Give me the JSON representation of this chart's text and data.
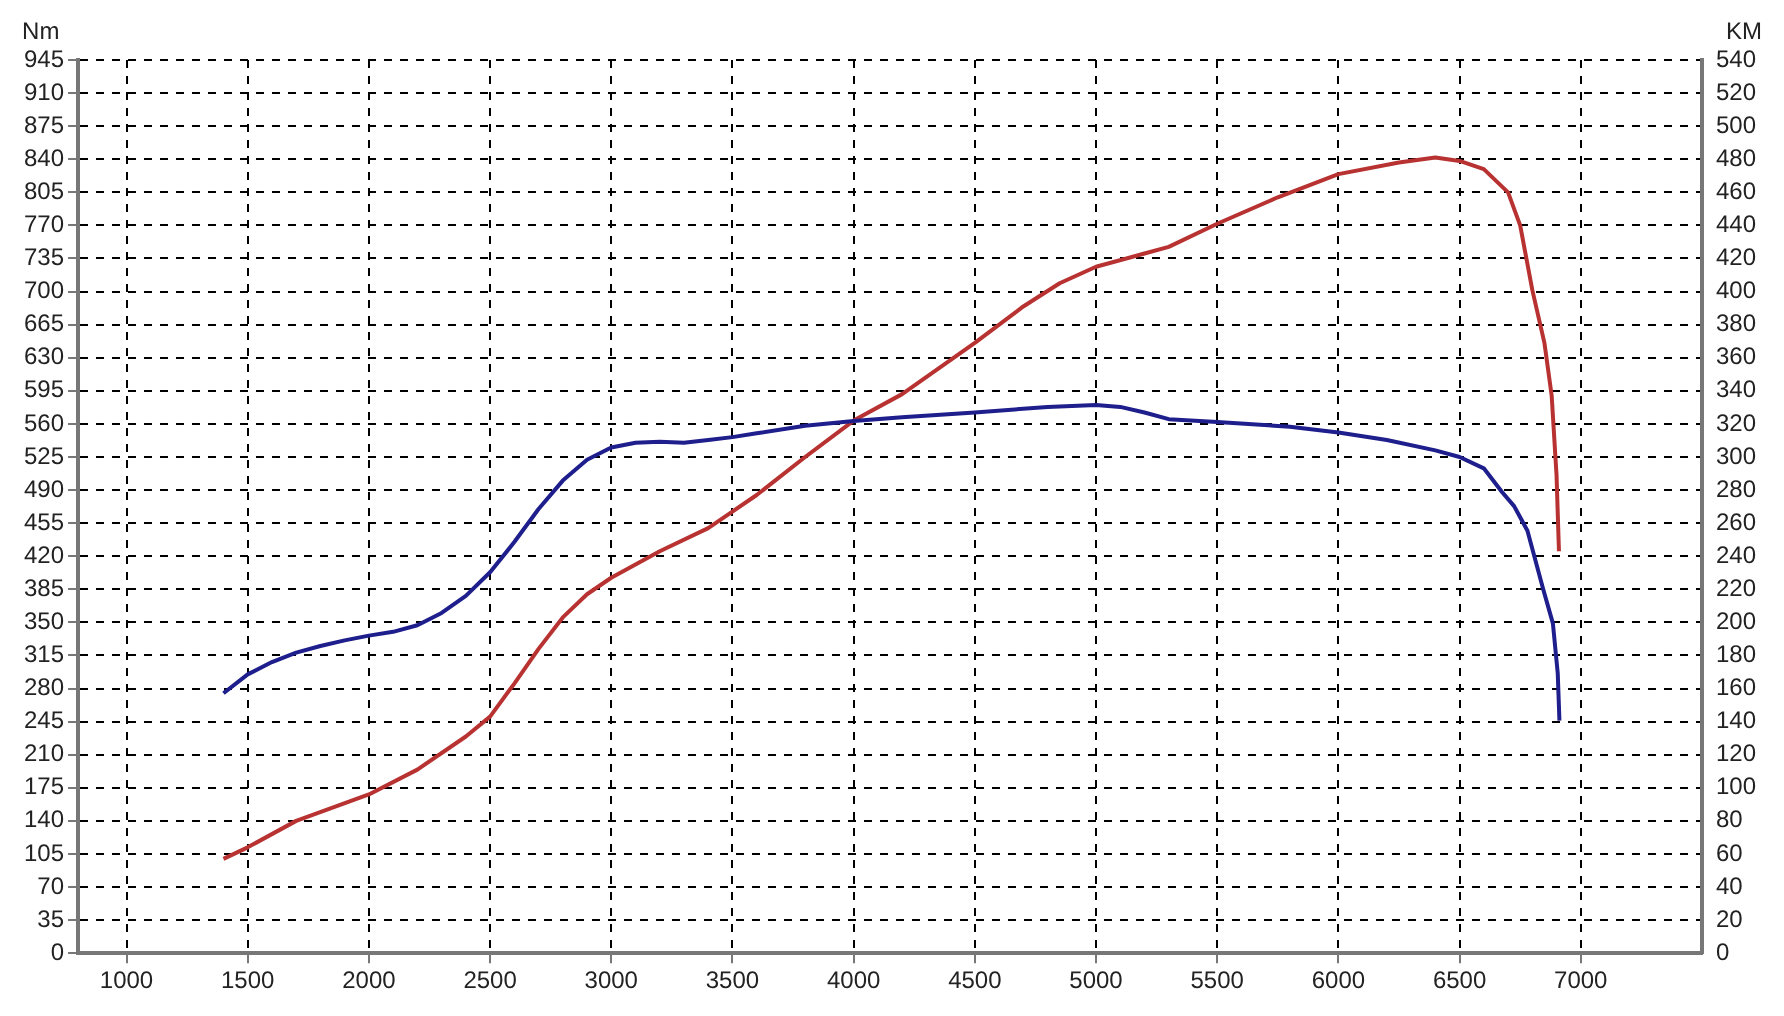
{
  "chart_data": {
    "type": "line",
    "ylabel": "Nm",
    "y2label": "KM",
    "xlim": [
      800,
      7500
    ],
    "xticks": [
      1000,
      1500,
      2000,
      2500,
      3000,
      3500,
      4000,
      4500,
      5000,
      5500,
      6000,
      6500,
      7000
    ],
    "ylim": [
      0,
      945
    ],
    "yticks": [
      0,
      35,
      70,
      105,
      140,
      175,
      210,
      245,
      280,
      315,
      350,
      385,
      420,
      455,
      490,
      525,
      560,
      595,
      630,
      665,
      700,
      735,
      770,
      805,
      840,
      875,
      910,
      945
    ],
    "y2lim": [
      0,
      540
    ],
    "y2ticks": [
      0,
      20,
      40,
      60,
      80,
      100,
      120,
      140,
      160,
      180,
      200,
      220,
      240,
      260,
      280,
      300,
      320,
      340,
      360,
      380,
      400,
      420,
      440,
      460,
      480,
      500,
      520,
      540
    ],
    "grid": true,
    "legend": false,
    "marker": "none",
    "line_style": "solid",
    "series": [
      {
        "color": "#1e1e8c",
        "x": [
          1400,
          1500,
          1600,
          1700,
          1800,
          1900,
          2000,
          2100,
          2200,
          2300,
          2400,
          2500,
          2600,
          2700,
          2800,
          2900,
          3000,
          3100,
          3200,
          3300,
          3400,
          3500,
          3600,
          3800,
          4000,
          4200,
          4500,
          4800,
          5000,
          5100,
          5200,
          5300,
          5500,
          5800,
          6000,
          6200,
          6400,
          6500,
          6600,
          6675,
          6725,
          6780,
          6845,
          6885,
          6905,
          6912
        ],
        "values": [
          275,
          295,
          308,
          318,
          325,
          331,
          336,
          340,
          347,
          360,
          378,
          403,
          435,
          470,
          500,
          522,
          535,
          540,
          541,
          540,
          543,
          546,
          550,
          558,
          563,
          567,
          572,
          578,
          580,
          578,
          572,
          565,
          562,
          557,
          551,
          543,
          532,
          525,
          513,
          488,
          473,
          447,
          385,
          349,
          296,
          246
        ]
      },
      {
        "color": "#b83232",
        "axis": "y2",
        "x": [
          1400,
          1500,
          1700,
          2000,
          2200,
          2400,
          2500,
          2600,
          2700,
          2800,
          2900,
          3000,
          3200,
          3400,
          3600,
          3800,
          4000,
          4200,
          4500,
          4700,
          4850,
          5000,
          5200,
          5300,
          5500,
          5750,
          6000,
          6250,
          6400,
          6500,
          6600,
          6700,
          6750,
          6800,
          6850,
          6880,
          6900,
          6910
        ],
        "values": [
          57,
          64,
          80,
          96,
          111,
          131,
          143,
          163,
          184,
          203,
          217,
          227,
          243,
          257,
          277,
          300,
          322,
          338,
          369,
          391,
          405,
          415,
          423,
          427,
          441,
          457,
          471,
          478,
          481,
          479,
          474,
          460,
          440,
          401,
          369,
          337,
          289,
          243
        ]
      }
    ]
  }
}
